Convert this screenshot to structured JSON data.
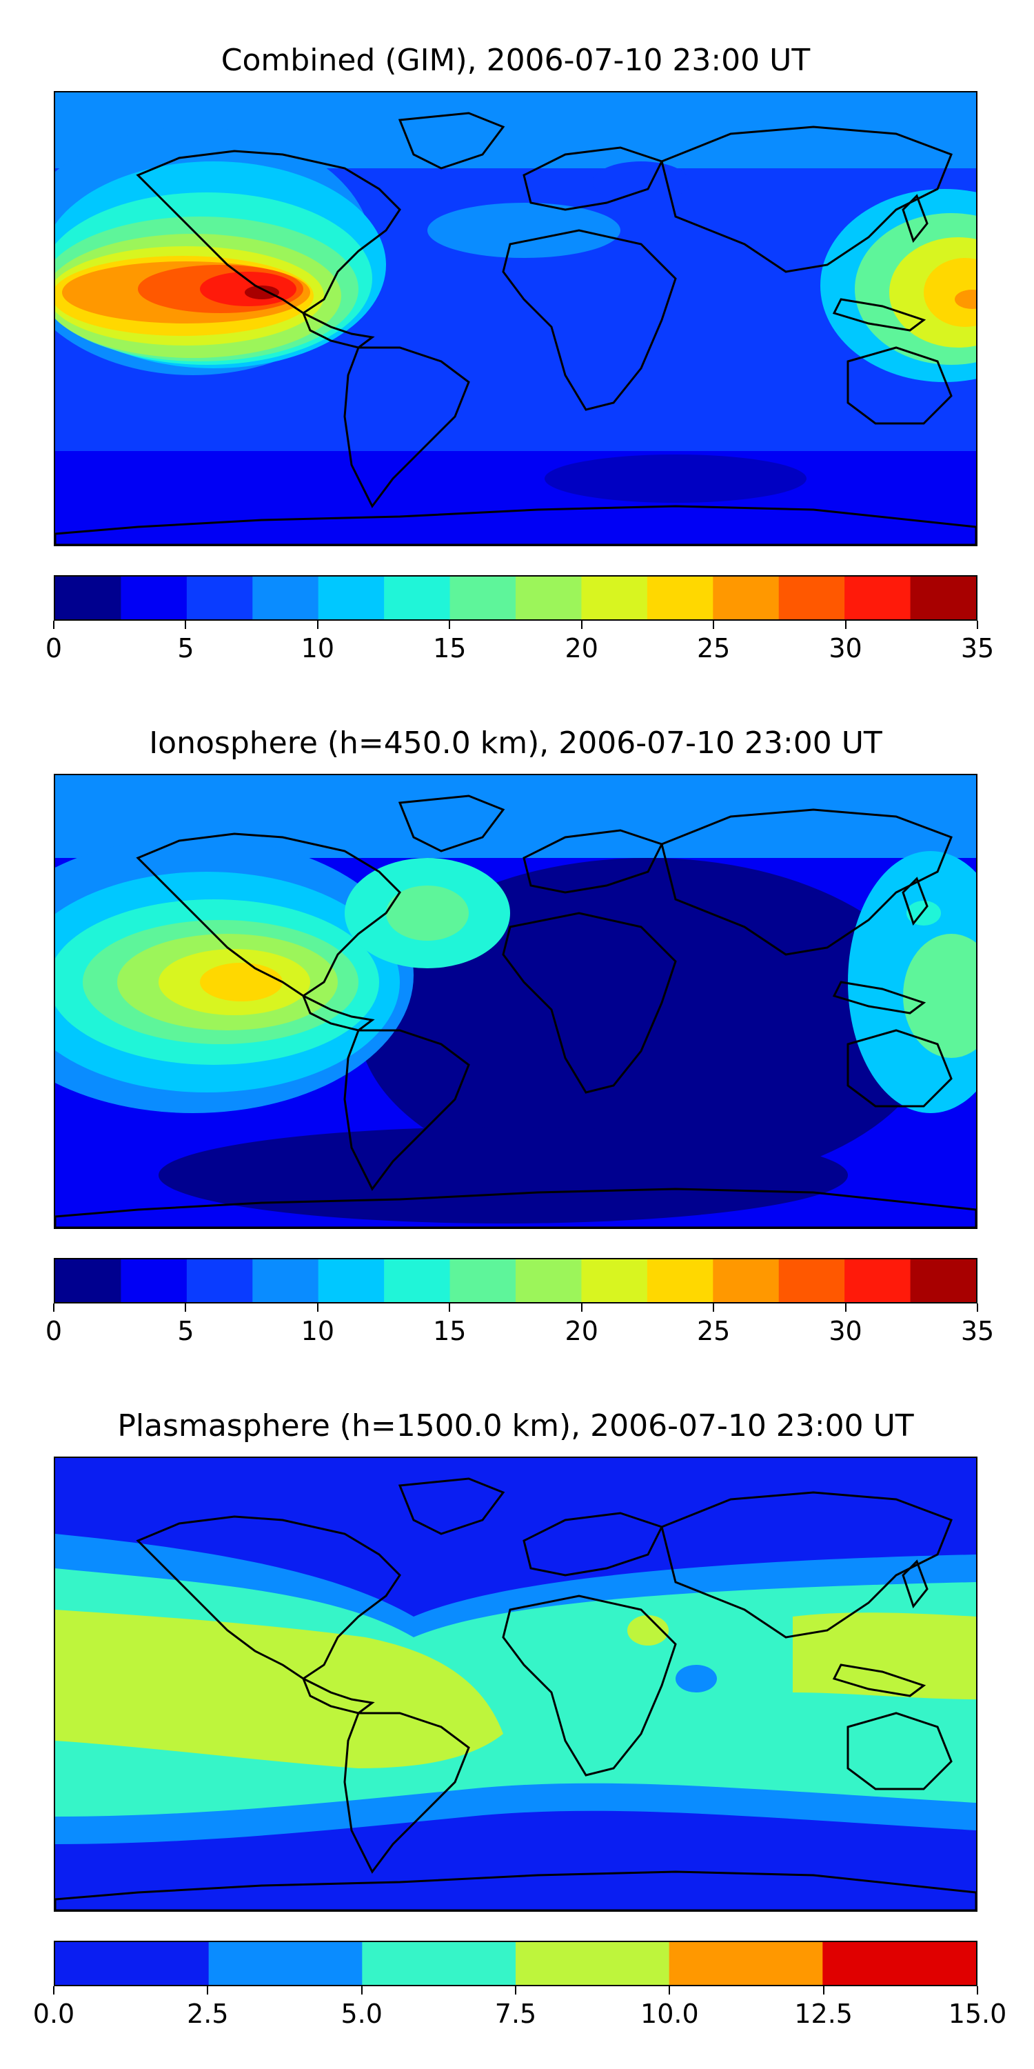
{
  "panels": [
    {
      "title": "Combined (GIM), 2006-07-10 23:00 UT",
      "colorbar": {
        "colors": [
          "#00008f",
          "#0000f5",
          "#0a3cff",
          "#0a8cff",
          "#00c8ff",
          "#20f5d8",
          "#5ef59a",
          "#9cf55a",
          "#d8f520",
          "#ffd800",
          "#ff9800",
          "#ff5800",
          "#ff1a0a",
          "#a80000"
        ],
        "ticks": [
          "0",
          "5",
          "10",
          "15",
          "20",
          "25",
          "30",
          "35"
        ],
        "range": [
          0,
          35
        ]
      }
    },
    {
      "title": "Ionosphere  (h=450.0 km), 2006-07-10 23:00 UT",
      "colorbar": {
        "colors": [
          "#00008f",
          "#0000f5",
          "#0a3cff",
          "#0a8cff",
          "#00c8ff",
          "#20f5d8",
          "#5ef59a",
          "#9cf55a",
          "#d8f520",
          "#ffd800",
          "#ff9800",
          "#ff5800",
          "#ff1a0a",
          "#a80000"
        ],
        "ticks": [
          "0",
          "5",
          "10",
          "15",
          "20",
          "25",
          "30",
          "35"
        ],
        "range": [
          0,
          35
        ]
      }
    },
    {
      "title": "Plasmasphere (h=1500.0 km), 2006-07-10 23:00 UT",
      "colorbar": {
        "colors": [
          "#0a1ef2",
          "#0a8cff",
          "#36f5c8",
          "#bef53c",
          "#ff9800",
          "#e00000"
        ],
        "ticks": [
          "0.0",
          "2.5",
          "5.0",
          "7.5",
          "10.0",
          "12.5",
          "15.0"
        ],
        "range": [
          0,
          15
        ]
      }
    }
  ]
}
